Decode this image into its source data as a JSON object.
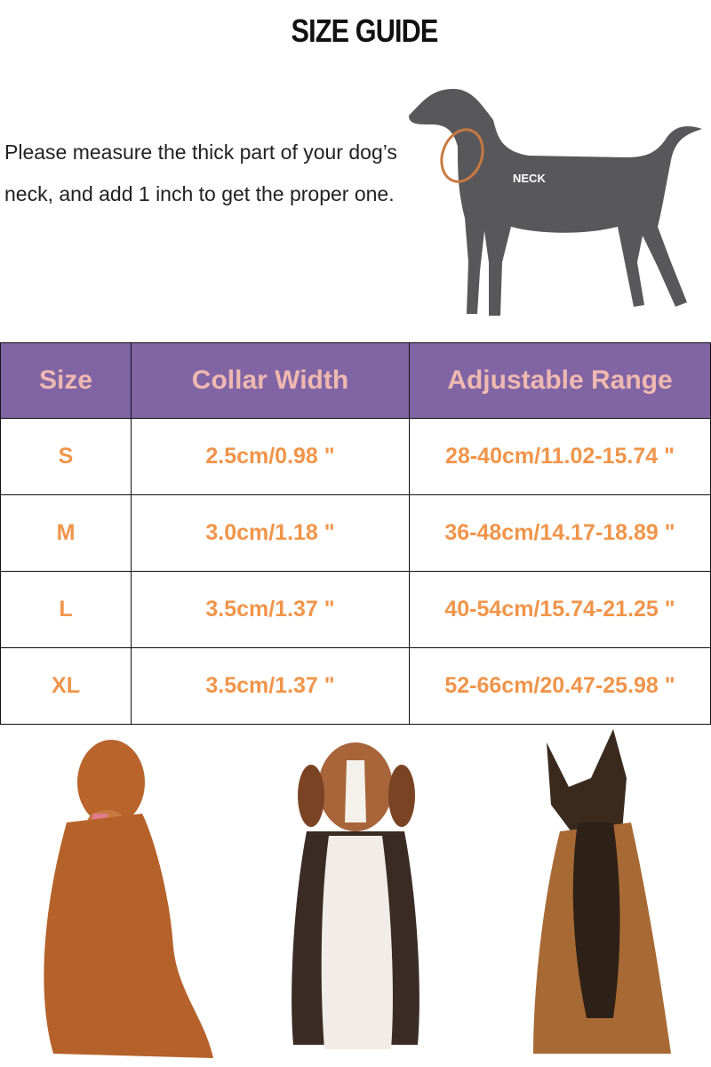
{
  "title": "SIZE GUIDE",
  "instruction": "Please measure the thick part of your dog’s neck, and add 1 inch to get the proper one.",
  "diagram_label": "NECK",
  "table": {
    "headers": [
      "Size",
      "Collar Width",
      "Adjustable Range"
    ],
    "rows": [
      [
        "S",
        "2.5cm/0.98 \"",
        "28-40cm/11.02-15.74 \""
      ],
      [
        "M",
        "3.0cm/1.18 \"",
        "36-48cm/14.17-18.89 \""
      ],
      [
        "L",
        "3.5cm/1.37 \"",
        "40-54cm/15.74-21.25 \""
      ],
      [
        "XL",
        "3.5cm/1.37 \"",
        "52-66cm/20.47-25.98 \""
      ]
    ]
  },
  "colors": {
    "header_bg": "#8064a4",
    "header_text": "#efb8b0",
    "cell_text": "#f0954a"
  }
}
